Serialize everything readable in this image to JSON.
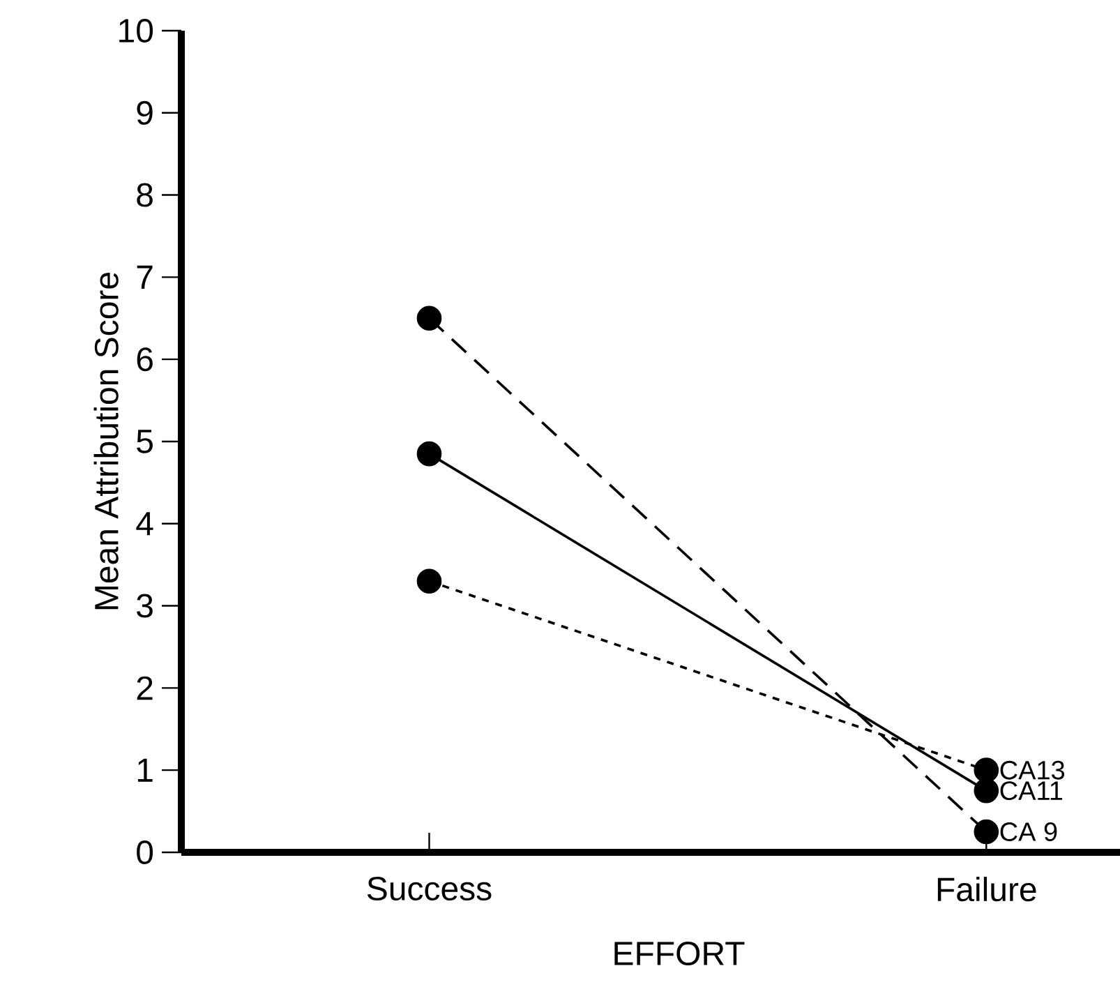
{
  "chart_data": {
    "type": "line",
    "xlabel": "EFFORT",
    "ylabel": "Mean Attribution Score",
    "categories": [
      "Success",
      "Failure"
    ],
    "series": [
      {
        "name": "CA13",
        "color": "#000000",
        "values": [
          3.3,
          1.0
        ],
        "line_style": "dotted"
      },
      {
        "name": "CA11",
        "color": "#000000",
        "values": [
          4.85,
          0.75
        ],
        "line_style": "solid"
      },
      {
        "name": "CA 9",
        "color": "#000000",
        "values": [
          6.5,
          0.25
        ],
        "line_style": "dashed"
      }
    ],
    "ylim": [
      0,
      10
    ],
    "yticks": [
      0,
      1,
      2,
      3,
      4,
      5,
      6,
      7,
      8,
      9,
      10
    ],
    "marker": "circle",
    "legend": false,
    "grid": false
  }
}
